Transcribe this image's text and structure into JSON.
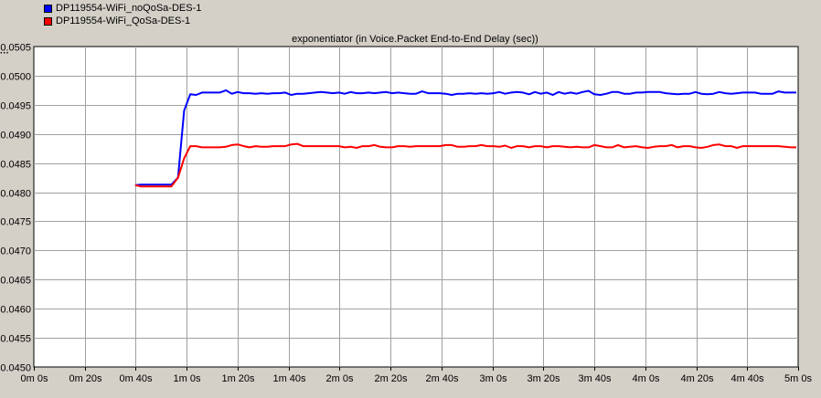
{
  "legend": [
    {
      "label": "DP119554-WiFi_noQoSa-DES-1",
      "color": "#0000ff"
    },
    {
      "label": "DP119554-WiFi_QoSa-DES-1",
      "color": "#ff0000"
    }
  ],
  "chart_data": {
    "type": "line",
    "title": "exponentiator (in Voice.Packet End-to-End Delay (sec))",
    "xlabel": "",
    "ylabel": "",
    "grid": true,
    "legend_position": "top-left",
    "xlim": [
      0,
      300
    ],
    "ylim": [
      0.045,
      0.0505
    ],
    "x_tick_labels": [
      "0m 0s",
      "0m 20s",
      "0m 40s",
      "1m 0s",
      "1m 20s",
      "1m 40s",
      "2m 0s",
      "2m 20s",
      "2m 40s",
      "3m 0s",
      "3m 20s",
      "3m 40s",
      "4m 0s",
      "4m 20s",
      "4m 40s",
      "5m 0s"
    ],
    "x_tick_values": [
      0,
      20,
      40,
      60,
      80,
      100,
      120,
      140,
      160,
      180,
      200,
      220,
      240,
      260,
      280,
      300
    ],
    "y_tick_labels": [
      "0.0505",
      "0.0500",
      "0.0495",
      "0.0490",
      "0.0485",
      "0.0480",
      "0.0475",
      "0.0470",
      "0.0465",
      "0.0460",
      "0.0455",
      "0.0450"
    ],
    "y_tick_values": [
      0.0505,
      0.05,
      0.0495,
      0.049,
      0.0485,
      0.048,
      0.0475,
      0.047,
      0.0465,
      0.046,
      0.0455,
      0.045
    ],
    "series": [
      {
        "name": "DP119554-WiFi_noQoSa-DES-1",
        "color": "#0000ff",
        "x": [
          39.8,
          42,
          45,
          48,
          51,
          54,
          56.6,
          59,
          61.4,
          63.7,
          66,
          68.3,
          70.7,
          73,
          75.4,
          77.7,
          80,
          82.4,
          84.7,
          87,
          89.3,
          91.7,
          94,
          96.4,
          98.7,
          101,
          103.4,
          105.7,
          108,
          110.4,
          112.7,
          115,
          117.4,
          119.7,
          122,
          124.4,
          126.7,
          129,
          131.4,
          133.7,
          136,
          138.3,
          140.7,
          143,
          145.4,
          147.7,
          150,
          152.4,
          154.7,
          157,
          159.3,
          161.7,
          164,
          166.4,
          168.7,
          171,
          173.4,
          175.7,
          178,
          180.4,
          182.7,
          185,
          187.4,
          189.7,
          192,
          194.4,
          196.7,
          199,
          201.4,
          203.7,
          206,
          208.3,
          210.7,
          213,
          215.4,
          217.7,
          220,
          222.4,
          224.7,
          227,
          229.3,
          231.7,
          234,
          236.4,
          238.7,
          241,
          243.4,
          245.7,
          248,
          250.4,
          252.7,
          255,
          257.4,
          259.7,
          262,
          264.4,
          266.7,
          269,
          271.4,
          273.7,
          276,
          278.3,
          280.7,
          283,
          285.4,
          287.7,
          290,
          292.3,
          294.7,
          297,
          299.3
        ],
        "values": [
          0.04812,
          0.04813,
          0.04813,
          0.04813,
          0.04813,
          0.04813,
          0.04825,
          0.0494,
          0.04968,
          0.04967,
          0.04971,
          0.04971,
          0.04971,
          0.04971,
          0.04975,
          0.04969,
          0.04972,
          0.0497,
          0.0497,
          0.04969,
          0.0497,
          0.04969,
          0.0497,
          0.0497,
          0.04971,
          0.04967,
          0.04969,
          0.04969,
          0.0497,
          0.04971,
          0.04972,
          0.04971,
          0.0497,
          0.04971,
          0.04969,
          0.04972,
          0.0497,
          0.0497,
          0.04971,
          0.0497,
          0.04971,
          0.04972,
          0.0497,
          0.04971,
          0.0497,
          0.04969,
          0.04969,
          0.04973,
          0.0497,
          0.0497,
          0.0497,
          0.04969,
          0.04967,
          0.04969,
          0.04969,
          0.0497,
          0.04969,
          0.0497,
          0.04969,
          0.0497,
          0.04972,
          0.04969,
          0.04971,
          0.04972,
          0.04971,
          0.04968,
          0.04972,
          0.04969,
          0.04971,
          0.04967,
          0.04972,
          0.04969,
          0.04971,
          0.04969,
          0.04972,
          0.04974,
          0.04968,
          0.04967,
          0.04969,
          0.04972,
          0.04972,
          0.04969,
          0.04969,
          0.04971,
          0.04971,
          0.04972,
          0.04972,
          0.04972,
          0.0497,
          0.04969,
          0.04968,
          0.04969,
          0.04969,
          0.04972,
          0.04969,
          0.04968,
          0.04969,
          0.04972,
          0.0497,
          0.04969,
          0.0497,
          0.04971,
          0.04971,
          0.04971,
          0.04969,
          0.04969,
          0.04969,
          0.04973,
          0.04971,
          0.04971,
          0.04971
        ]
      },
      {
        "name": "DP119554-WiFi_QoSa-DES-1",
        "color": "#ff0000",
        "x": [
          39.8,
          42,
          45,
          48,
          51,
          54,
          56.6,
          59,
          61.4,
          63.7,
          66,
          68.3,
          70.7,
          73,
          75.4,
          77.7,
          80,
          82.4,
          84.7,
          87,
          89.3,
          91.7,
          94,
          96.4,
          98.7,
          101,
          103.4,
          105.7,
          108,
          110.4,
          112.7,
          115,
          117.4,
          119.7,
          122,
          124.4,
          126.7,
          129,
          131.4,
          133.7,
          136,
          138.3,
          140.7,
          143,
          145.4,
          147.7,
          150,
          152.4,
          154.7,
          157,
          159.3,
          161.7,
          164,
          166.4,
          168.7,
          171,
          173.4,
          175.7,
          178,
          180.4,
          182.7,
          185,
          187.4,
          189.7,
          192,
          194.4,
          196.7,
          199,
          201.4,
          203.7,
          206,
          208.3,
          210.7,
          213,
          215.4,
          217.7,
          220,
          222.4,
          224.7,
          227,
          229.3,
          231.7,
          234,
          236.4,
          238.7,
          241,
          243.4,
          245.7,
          248,
          250.4,
          252.7,
          255,
          257.4,
          259.7,
          262,
          264.4,
          266.7,
          269,
          271.4,
          273.7,
          276,
          278.3,
          280.7,
          283,
          285.4,
          287.7,
          290,
          292.3,
          294.7,
          297,
          299.3
        ],
        "values": [
          0.04812,
          0.0481,
          0.0481,
          0.0481,
          0.0481,
          0.0481,
          0.04825,
          0.04858,
          0.04879,
          0.04879,
          0.04877,
          0.04877,
          0.04877,
          0.04877,
          0.04878,
          0.04881,
          0.04882,
          0.04879,
          0.04877,
          0.04879,
          0.04878,
          0.04878,
          0.04879,
          0.04879,
          0.04879,
          0.04882,
          0.04883,
          0.04879,
          0.04879,
          0.04879,
          0.04879,
          0.04879,
          0.04879,
          0.04879,
          0.04877,
          0.04878,
          0.04876,
          0.04879,
          0.04879,
          0.04881,
          0.04878,
          0.04877,
          0.04877,
          0.04879,
          0.04879,
          0.04878,
          0.04879,
          0.04879,
          0.04879,
          0.04879,
          0.04879,
          0.04881,
          0.04881,
          0.04878,
          0.04878,
          0.04879,
          0.04879,
          0.04881,
          0.04879,
          0.04879,
          0.04878,
          0.0488,
          0.04876,
          0.04879,
          0.04879,
          0.04877,
          0.04879,
          0.04879,
          0.04877,
          0.04879,
          0.04879,
          0.04878,
          0.04877,
          0.04878,
          0.04877,
          0.04877,
          0.04881,
          0.04879,
          0.04877,
          0.04877,
          0.04881,
          0.04877,
          0.04878,
          0.04879,
          0.04877,
          0.04876,
          0.04878,
          0.04879,
          0.04879,
          0.04881,
          0.04877,
          0.04879,
          0.04879,
          0.04877,
          0.04876,
          0.04878,
          0.04881,
          0.04882,
          0.04879,
          0.04879,
          0.04876,
          0.04879,
          0.04879,
          0.04879,
          0.04879,
          0.04879,
          0.04879,
          0.04879,
          0.04878,
          0.04877,
          0.04877
        ]
      }
    ]
  }
}
